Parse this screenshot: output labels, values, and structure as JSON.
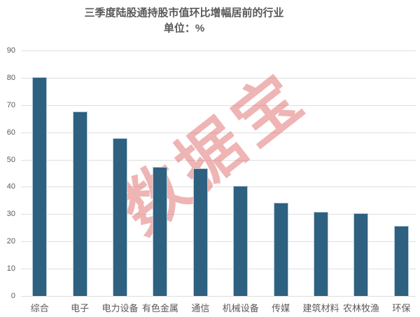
{
  "chart_data": {
    "type": "bar",
    "title": "三季度陆股通持股市值环比增幅居前的行业",
    "subtitle": "单位：%",
    "categories": [
      "综合",
      "电子",
      "电力设备",
      "有色金属",
      "通信",
      "机械设备",
      "传媒",
      "建筑材料",
      "农林牧渔",
      "环保"
    ],
    "values": [
      80,
      67.5,
      57.5,
      47,
      46.5,
      40,
      34,
      30.5,
      30,
      25.5
    ],
    "xlabel": "",
    "ylabel": "",
    "ylim": [
      0,
      90
    ],
    "ytick_step": 10,
    "ytick_labels": [
      "0",
      "10",
      "20",
      "30",
      "40",
      "50",
      "60",
      "70",
      "80",
      "90"
    ],
    "grid": true,
    "legend": "none",
    "colors": {
      "bar_fill": "#2E6080",
      "bar_border": "#B4CCDA",
      "gridline": "#DEDEDE",
      "text": "#595959",
      "watermark": "#DF6969"
    },
    "watermark": {
      "text": "数据宝",
      "rotation_deg": -38,
      "opacity": 0.5
    }
  }
}
